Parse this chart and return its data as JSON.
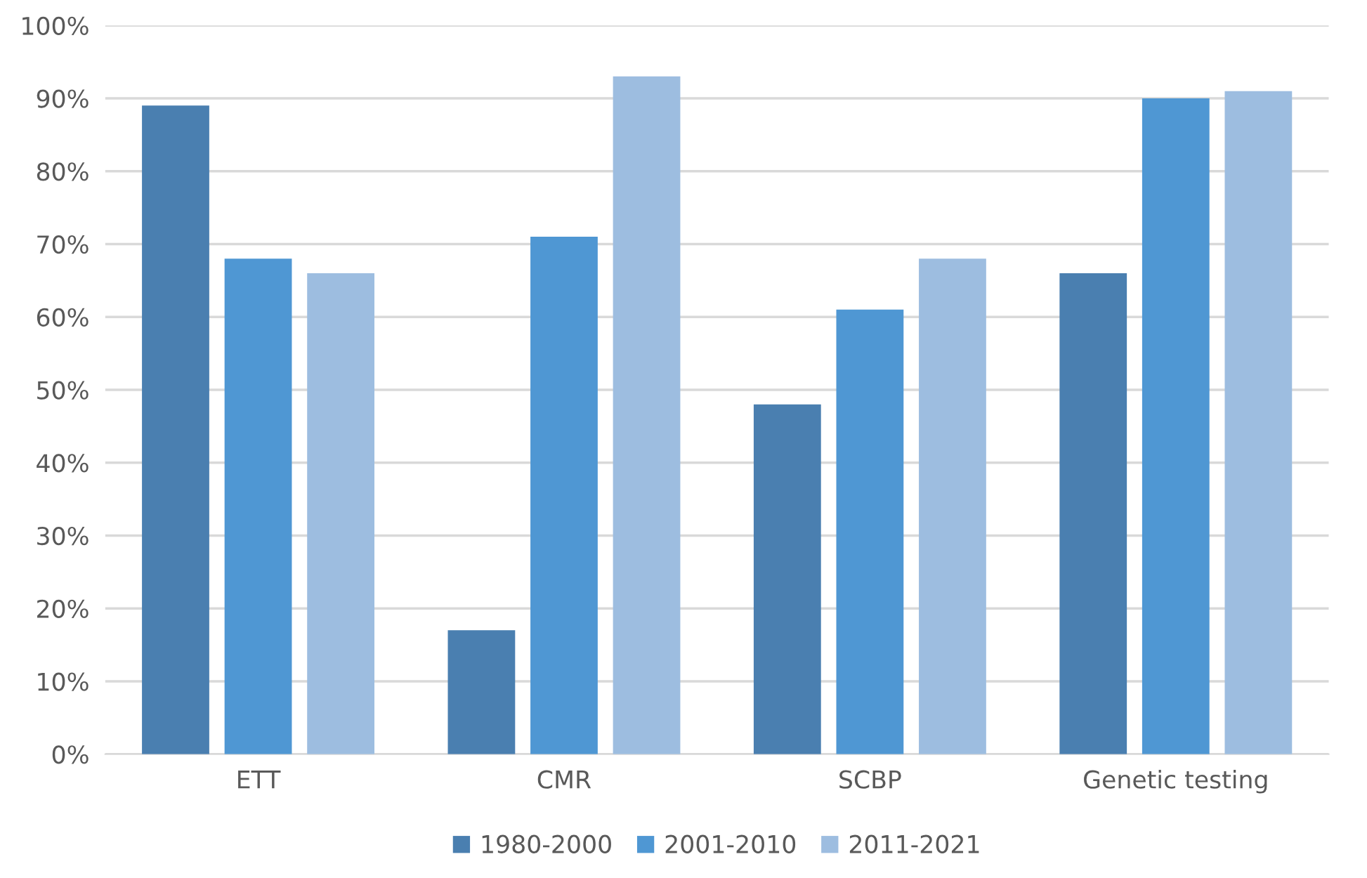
{
  "chart_data": {
    "type": "bar",
    "categories": [
      "ETT",
      "CMR",
      "SCBP",
      "Genetic testing"
    ],
    "series": [
      {
        "name": "1980-2000",
        "color": "#4a7fb0",
        "values": [
          89,
          17,
          48,
          66
        ]
      },
      {
        "name": "2001-2010",
        "color": "#4f97d3",
        "values": [
          68,
          71,
          61,
          90
        ]
      },
      {
        "name": "2011-2021",
        "color": "#9dbde0",
        "values": [
          66,
          93,
          68,
          91
        ]
      }
    ],
    "ylim": [
      0,
      100
    ],
    "yticks": [
      {
        "value": 0,
        "label": "0%"
      },
      {
        "value": 10,
        "label": "10%"
      },
      {
        "value": 20,
        "label": "20%"
      },
      {
        "value": 30,
        "label": "30%"
      },
      {
        "value": 40,
        "label": "40%"
      },
      {
        "value": 50,
        "label": "50%"
      },
      {
        "value": 60,
        "label": "60%"
      },
      {
        "value": 70,
        "label": "70%"
      },
      {
        "value": 80,
        "label": "80%"
      },
      {
        "value": 90,
        "label": "90%"
      },
      {
        "value": 100,
        "label": "100%"
      }
    ],
    "grid": "y",
    "legend": "bottom"
  }
}
